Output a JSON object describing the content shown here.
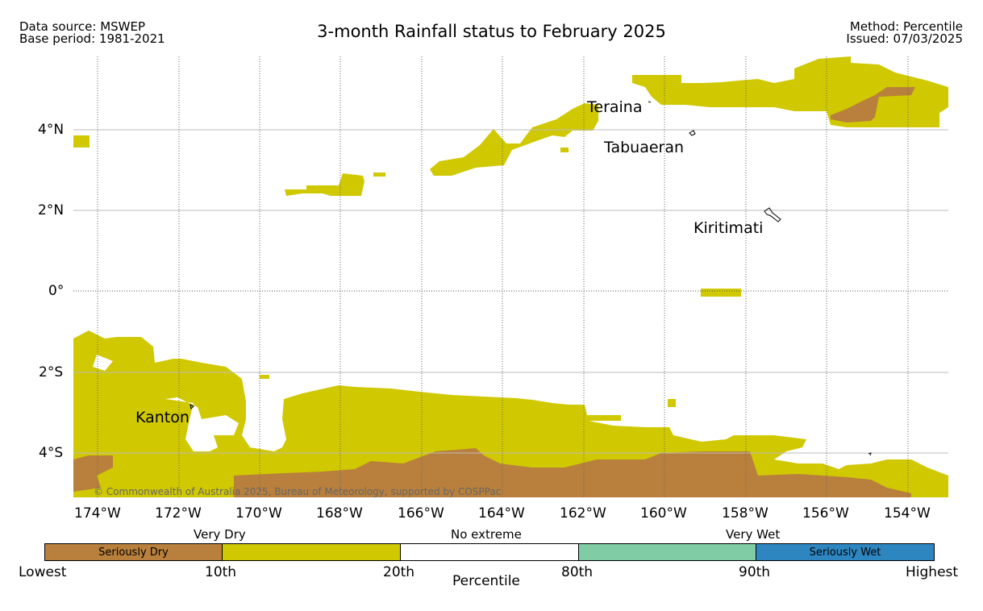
{
  "header": {
    "data_source": "Data source: MSWEP",
    "base_period": "Base period: 1981-2021",
    "title": "3-month Rainfall status to February 2025",
    "method": "Method: Percentile",
    "issued": "Issued: 07/03/2025"
  },
  "map": {
    "lat_labels": [
      "4°N",
      "2°N",
      "0°",
      "2°S",
      "4°S"
    ],
    "lon_labels": [
      "174°W",
      "172°W",
      "170°W",
      "168°W",
      "166°W",
      "164°W",
      "162°W",
      "160°W",
      "158°W",
      "156°W",
      "154°W"
    ],
    "place_labels": [
      "Teraina",
      "Tabuaeran",
      "Kiritimati",
      "Kanton"
    ],
    "copyright": "© Commonwealth of Australia 2025, Bureau of Meteorology, supported by COSPPac",
    "colors": {
      "seriously_dry": "#b8803c",
      "very_dry": "#d0c800",
      "no_extreme": "#ffffff",
      "very_wet": "#7fcca5",
      "seriously_wet": "#2e86c1"
    }
  },
  "legend": {
    "groups": [
      "Very Dry",
      "No extreme",
      "Very Wet"
    ],
    "boxes": [
      "Seriously Dry",
      "",
      "",
      "",
      "Seriously Wet"
    ],
    "ticks": [
      "Lowest",
      "10th",
      "20th",
      "80th",
      "90th",
      "Highest"
    ],
    "axis_label": "Percentile"
  }
}
